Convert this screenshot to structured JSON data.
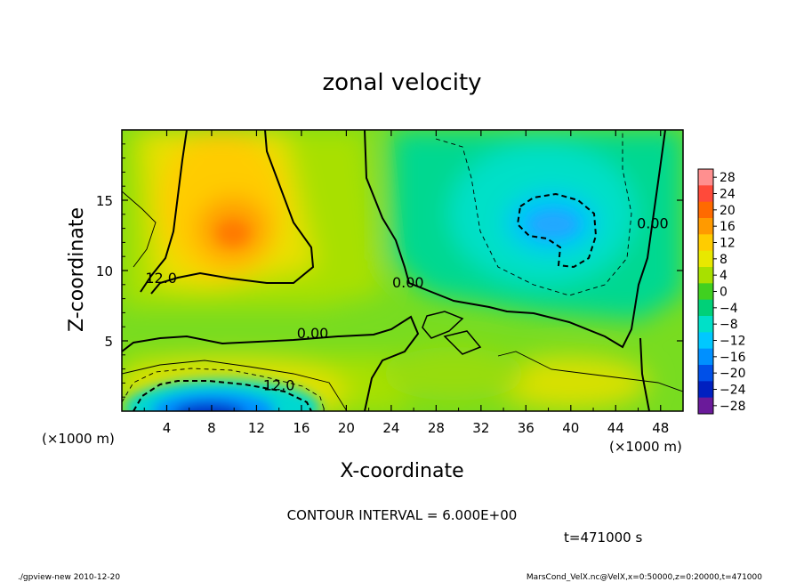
{
  "chart_data": {
    "type": "heatmap",
    "title": "zonal velocity",
    "xlabel": "X-coordinate",
    "ylabel": "Z-coordinate",
    "x_unit_left": "(×1000 m)",
    "x_unit_right": "(×1000 m)",
    "xlim": [
      0,
      50
    ],
    "ylim": [
      0,
      20
    ],
    "x_ticks": [
      4,
      8,
      12,
      16,
      20,
      24,
      28,
      32,
      36,
      40,
      44,
      48
    ],
    "x_tick_labels": [
      "4",
      "8",
      "12",
      "16",
      "20",
      "24",
      "28",
      "32",
      "36",
      "40",
      "44",
      "48"
    ],
    "y_ticks": [
      5,
      10,
      15
    ],
    "y_tick_labels": [
      "5",
      "10",
      "15"
    ],
    "colorbar": {
      "levels": [
        28,
        24,
        20,
        16,
        12,
        8,
        4,
        0,
        -4,
        -8,
        -12,
        -16,
        -20,
        -24,
        -28
      ],
      "labels": [
        "28",
        "24",
        "20",
        "16",
        "12",
        "8",
        "4",
        "0",
        "−4",
        "−8",
        "−12",
        "−16",
        "−20",
        "−24",
        "−28"
      ],
      "colors": [
        "#ff8f8f",
        "#ff4a3a",
        "#ff6a00",
        "#ff9a00",
        "#ffcc00",
        "#e8e800",
        "#a8e000",
        "#40d020",
        "#00d078",
        "#00e0c8",
        "#00c8ff",
        "#0090ff",
        "#0050e8",
        "#0020c0",
        "#6a1a9a"
      ]
    },
    "contour_interval_text": "CONTOUR INTERVAL = 6.000E+00",
    "contour_labels": [
      {
        "text": "12.0",
        "x": 3.5,
        "z": 9.1
      },
      {
        "text": "0.00",
        "x": 25.5,
        "z": 8.8
      },
      {
        "text": "0.00",
        "x": 17.0,
        "z": 5.2
      },
      {
        "text": "0.00",
        "x": 47.3,
        "z": 13.0
      },
      {
        "text": "12.0",
        "x": 14.0,
        "z": 1.5
      }
    ],
    "field_features": [
      {
        "name": "upper-left jet",
        "x": 10,
        "z": 12.5,
        "value": 16
      },
      {
        "name": "upper-right counter-flow",
        "x": 38,
        "z": 13,
        "value": -12
      },
      {
        "name": "lower-left counter-flow",
        "x": 10,
        "z": 0.8,
        "value": -22
      },
      {
        "name": "lower-right flow",
        "x": 40,
        "z": 2,
        "value": 8
      }
    ],
    "time_text": "t=471000 s"
  },
  "footer": {
    "left": "./gpview-new  2010-12-20",
    "right": "MarsCond_VelX.nc@VelX,x=0:50000,z=0:20000,t=471000"
  }
}
